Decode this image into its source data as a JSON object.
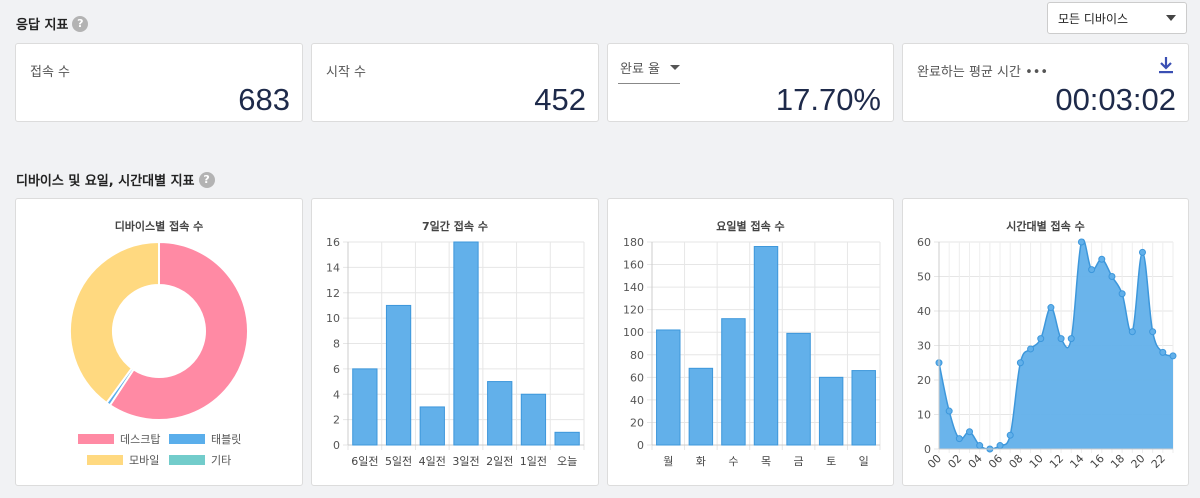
{
  "header": {
    "title": "응답 지표",
    "help": "?"
  },
  "device_select": {
    "value": "모든 디바이스"
  },
  "metrics": [
    {
      "label": "접속 수",
      "value": "683"
    },
    {
      "label": "시작 수",
      "value": "452"
    },
    {
      "label": "완료 율",
      "value": "17.70%"
    },
    {
      "label": "완료하는 평균 시간 •••",
      "value": "00:03:02"
    }
  ],
  "section2": {
    "title": "디바이스 및 요일, 시간대별 지표",
    "help": "?"
  },
  "colors": {
    "desktop": "#ff8aa4",
    "tablet": "#5aaeeb",
    "mobile": "#ffd980",
    "other": "#72cccb",
    "bar": "#62b0ea",
    "bar_stroke": "#3d97db"
  },
  "chart_data": [
    {
      "type": "pie",
      "title": "디바이스별 접속 수",
      "categories": [
        "데스크탑",
        "태블릿",
        "모바일",
        "기타"
      ],
      "values": [
        405,
        5,
        273,
        0
      ],
      "legend": "bottom"
    },
    {
      "type": "bar",
      "title": "7일간 접속 수",
      "categories": [
        "6일전",
        "5일전",
        "4일전",
        "3일전",
        "2일전",
        "1일전",
        "오늘"
      ],
      "values": [
        6,
        11,
        3,
        16,
        5,
        4,
        1
      ],
      "ylim": [
        0,
        16
      ],
      "yticks": [
        "0",
        "2",
        "4",
        "6",
        "8",
        "10",
        "12",
        "14",
        "16"
      ]
    },
    {
      "type": "bar",
      "title": "요일별 접속 수",
      "categories": [
        "월",
        "화",
        "수",
        "목",
        "금",
        "토",
        "일"
      ],
      "values": [
        102,
        68,
        112,
        176,
        99,
        60,
        66
      ],
      "ylim": [
        0,
        180
      ],
      "yticks": [
        "0",
        "20",
        "40",
        "60",
        "80",
        "100",
        "120",
        "140",
        "160",
        "180"
      ]
    },
    {
      "type": "area",
      "title": "시간대별 접속 수",
      "categories": [
        "00",
        "01",
        "02",
        "03",
        "04",
        "05",
        "06",
        "07",
        "08",
        "09",
        "10",
        "11",
        "12",
        "13",
        "14",
        "15",
        "16",
        "17",
        "18",
        "19",
        "20",
        "21",
        "22",
        "23"
      ],
      "xticks": [
        "00",
        "02",
        "04",
        "06",
        "08",
        "10",
        "12",
        "14",
        "16",
        "18",
        "20",
        "22"
      ],
      "values": [
        25,
        11,
        3,
        5,
        1,
        0,
        1,
        4,
        25,
        29,
        32,
        41,
        32,
        32,
        60,
        52,
        55,
        50,
        45,
        34,
        57,
        34,
        28,
        27
      ],
      "ylim": [
        0,
        60
      ],
      "yticks": [
        "0",
        "10",
        "20",
        "30",
        "40",
        "50",
        "60"
      ]
    }
  ]
}
